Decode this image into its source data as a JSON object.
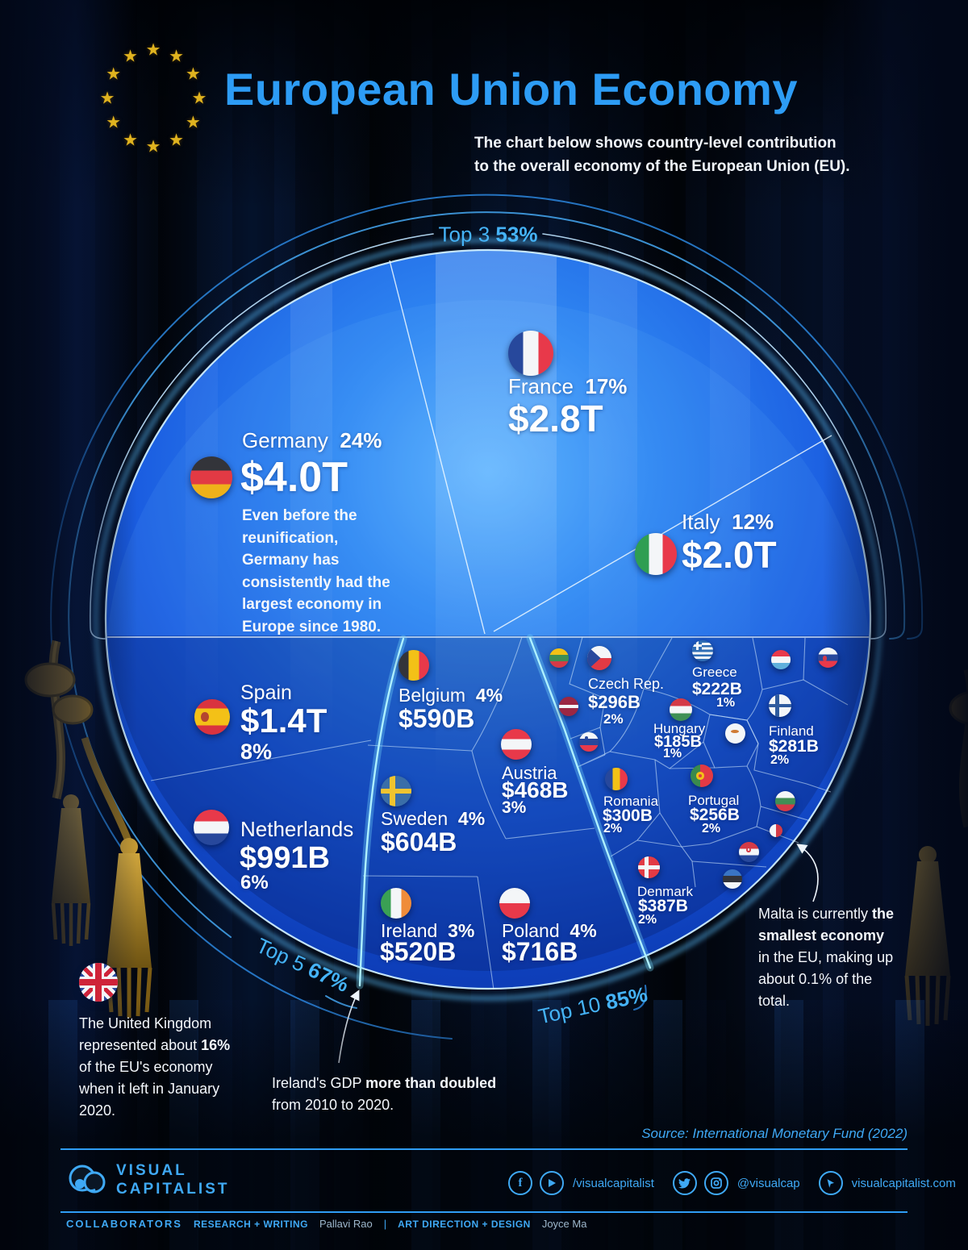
{
  "header": {
    "title": "European Union Economy",
    "subtitle_line1": "The chart below shows country-level contribution",
    "subtitle_line2": "to the overall economy of the European Union (EU)."
  },
  "theme": {
    "title_blue": "#2d9cf5",
    "arc_label_blue": "#45b3f7",
    "circle_blue": "#1a5ce0",
    "footer_blue": "#3fa9f5"
  },
  "chart_data": {
    "type": "voronoi_pie",
    "title": "European Union Economy",
    "legend_position": "in-chart labels",
    "groups": [
      {
        "label": "Top 3",
        "pct": "53%"
      },
      {
        "label": "Top 5",
        "pct": "67%"
      },
      {
        "label": "Top 10",
        "pct": "85%"
      }
    ],
    "countries": [
      {
        "name": "Germany",
        "pct": "24%",
        "value": "$4.0T",
        "share": 24
      },
      {
        "name": "France",
        "pct": "17%",
        "value": "$2.8T",
        "share": 17
      },
      {
        "name": "Italy",
        "pct": "12%",
        "value": "$2.0T",
        "share": 12
      },
      {
        "name": "Spain",
        "pct": "8%",
        "value": "$1.4T",
        "share": 8
      },
      {
        "name": "Netherlands",
        "pct": "6%",
        "value": "$991B",
        "share": 6
      },
      {
        "name": "Belgium",
        "pct": "4%",
        "value": "$590B",
        "share": 4
      },
      {
        "name": "Sweden",
        "pct": "4%",
        "value": "$604B",
        "share": 4
      },
      {
        "name": "Poland",
        "pct": "4%",
        "value": "$716B",
        "share": 4
      },
      {
        "name": "Ireland",
        "pct": "3%",
        "value": "$520B",
        "share": 3
      },
      {
        "name": "Austria",
        "pct": "3%",
        "value": "$468B",
        "share": 3
      },
      {
        "name": "Czech Rep.",
        "pct": "2%",
        "value": "$296B",
        "share": 2
      },
      {
        "name": "Romania",
        "pct": "2%",
        "value": "$300B",
        "share": 2
      },
      {
        "name": "Portugal",
        "pct": "2%",
        "value": "$256B",
        "share": 2
      },
      {
        "name": "Denmark",
        "pct": "2%",
        "value": "$387B",
        "share": 2
      },
      {
        "name": "Finland",
        "pct": "2%",
        "value": "$281B",
        "share": 2
      },
      {
        "name": "Greece",
        "pct": "1%",
        "value": "$222B",
        "share": 1
      },
      {
        "name": "Hungary",
        "pct": "1%",
        "value": "$185B",
        "share": 1
      }
    ],
    "unlabeled_members": [
      "Lithuania",
      "Latvia",
      "Slovenia",
      "Luxembourg",
      "Slovakia",
      "Cyprus",
      "Bulgaria",
      "Malta",
      "Croatia",
      "Estonia"
    ]
  },
  "annotations": {
    "germany": [
      {
        "t": "Even before the reunification, Germany has consistently had the largest economy in Europe since 1980.",
        "b": true
      }
    ],
    "uk": [
      {
        "t": "The United Kingdom represented about ",
        "b": false
      },
      {
        "t": "16%",
        "b": true
      },
      {
        "t": " of the EU's economy when it left in January 2020.",
        "b": false
      }
    ],
    "ireland": [
      {
        "t": "Ireland's GDP ",
        "b": false
      },
      {
        "t": "more than doubled",
        "b": true
      },
      {
        "t": " from 2010 to 2020.",
        "b": false
      }
    ],
    "malta": [
      {
        "t": "Malta is currently ",
        "b": false
      },
      {
        "t": "the smallest economy",
        "b": true
      },
      {
        "t": " in the EU, making up about 0.1% of the total.",
        "b": false
      }
    ]
  },
  "source": "Source: International Monetary Fund (2022)",
  "footer": {
    "brand_line1": "VISUAL",
    "brand_line2": "CAPITALIST",
    "social1": "/visualcapitalist",
    "social2": "@visualcap",
    "social3": "visualcapitalist.com",
    "collaborators_label": "COLLABORATORS",
    "role1": "RESEARCH + WRITING",
    "name1": "Pallavi Rao",
    "divider": "|",
    "role2": "ART DIRECTION + DESIGN",
    "name2": "Joyce Ma"
  }
}
